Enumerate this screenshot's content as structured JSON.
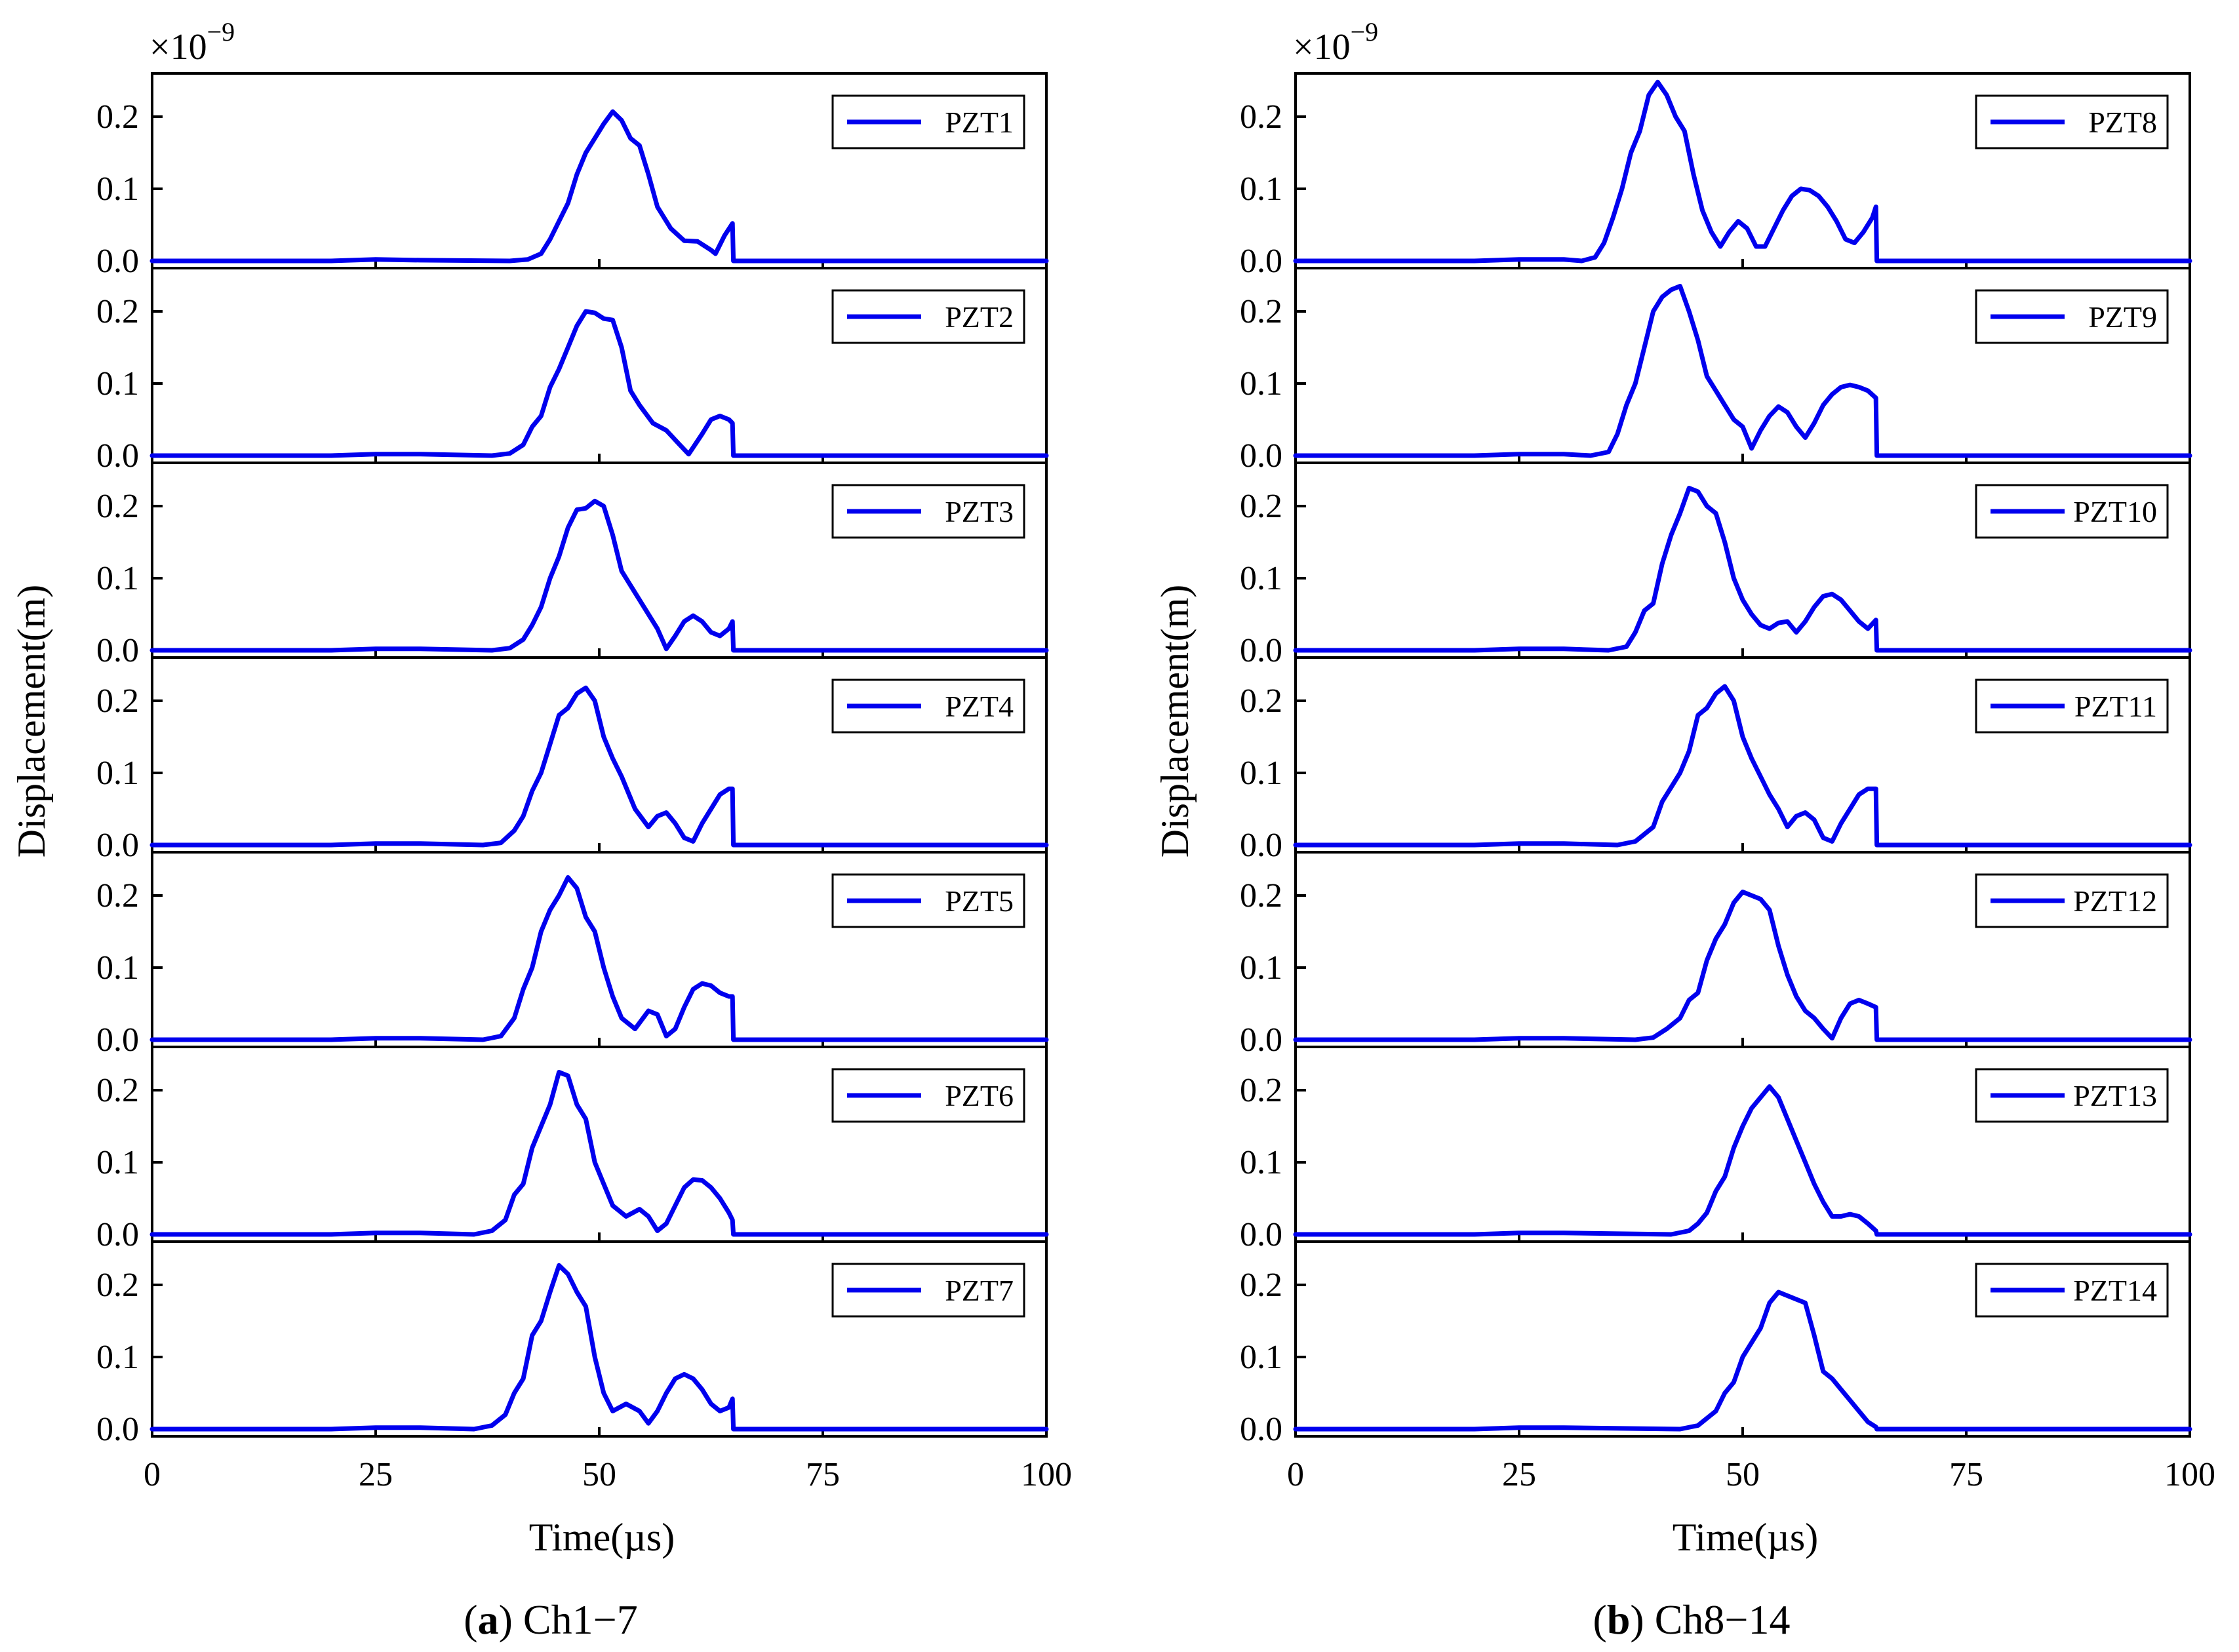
{
  "figure": {
    "line_color": "#0000ee"
  },
  "chart_data": [
    {
      "type": "line",
      "panel_id": "a",
      "caption_letter": "a",
      "caption_text": "Ch1−7",
      "xlabel": "Time(µs)",
      "ylabel": "Displacement(m)",
      "multiplier": "×10",
      "multiplier_exp": "−9",
      "xlim": [
        0,
        100
      ],
      "ylim": [
        -0.01,
        0.26
      ],
      "xticks": [
        0,
        25,
        50,
        75,
        100
      ],
      "xtick_labels": [
        "0",
        "25",
        "50",
        "75",
        "100"
      ],
      "yticks": [
        0.0,
        0.1,
        0.2
      ],
      "ytick_labels": [
        "0.0",
        "0.1",
        "0.2"
      ],
      "grid": false,
      "legend_position": "top-right",
      "series": [
        {
          "name": "PZT1",
          "x": [
            0,
            20,
            25,
            30,
            40,
            42,
            43.5,
            44.5,
            45.5,
            46.5,
            47.5,
            48.5,
            49.5,
            50.5,
            51.5,
            52.5,
            53.5,
            54.5,
            55.5,
            56.5,
            58,
            59.5,
            61,
            62.5,
            63,
            64,
            64.9,
            65,
            70,
            100
          ],
          "values": [
            0,
            0,
            0.002,
            0.001,
            0,
            0.002,
            0.01,
            0.03,
            0.055,
            0.08,
            0.12,
            0.15,
            0.17,
            0.19,
            0.207,
            0.195,
            0.17,
            0.16,
            0.12,
            0.075,
            0.045,
            0.028,
            0.027,
            0.015,
            0.01,
            0.035,
            0.052,
            0,
            0,
            0
          ]
        },
        {
          "name": "PZT2",
          "x": [
            0,
            20,
            25,
            30,
            38,
            40,
            41.5,
            42.5,
            43.5,
            44.5,
            45.5,
            46.5,
            47.5,
            48.5,
            49.5,
            50.5,
            51.5,
            52.5,
            53.5,
            54.5,
            56,
            57.5,
            59,
            60,
            61.5,
            62.5,
            63.5,
            64.5,
            64.9,
            65,
            70,
            100
          ],
          "values": [
            0,
            0,
            0.002,
            0.002,
            0,
            0.003,
            0.015,
            0.04,
            0.055,
            0.095,
            0.12,
            0.15,
            0.18,
            0.2,
            0.198,
            0.19,
            0.188,
            0.15,
            0.09,
            0.07,
            0.045,
            0.035,
            0.015,
            0.002,
            0.03,
            0.05,
            0.055,
            0.05,
            0.045,
            0,
            0,
            0
          ]
        },
        {
          "name": "PZT3",
          "x": [
            0,
            20,
            25,
            30,
            38,
            40,
            41.5,
            42.5,
            43.5,
            44.5,
            45.5,
            46.5,
            47.5,
            48.5,
            49.5,
            50.5,
            51.5,
            52.5,
            53.5,
            55,
            56.5,
            57.5,
            58.5,
            59.5,
            60.5,
            61.5,
            62.5,
            63.5,
            64.5,
            64.9,
            65,
            70,
            100
          ],
          "values": [
            0,
            0,
            0.002,
            0.002,
            0,
            0.003,
            0.015,
            0.035,
            0.06,
            0.1,
            0.13,
            0.17,
            0.195,
            0.197,
            0.207,
            0.2,
            0.16,
            0.11,
            0.09,
            0.06,
            0.03,
            0.002,
            0.02,
            0.04,
            0.048,
            0.04,
            0.025,
            0.02,
            0.03,
            0.04,
            0,
            0,
            0
          ]
        },
        {
          "name": "PZT4",
          "x": [
            0,
            20,
            25,
            30,
            37,
            39,
            40.5,
            41.5,
            42.5,
            43.5,
            44.5,
            45.5,
            46.5,
            47.5,
            48.5,
            49.5,
            50.5,
            51.5,
            52.5,
            54,
            55.5,
            56.5,
            57.5,
            58.5,
            59.5,
            60.5,
            61.5,
            62.5,
            63.5,
            64.5,
            64.9,
            65,
            70,
            100
          ],
          "values": [
            0,
            0,
            0.002,
            0.002,
            0,
            0.003,
            0.02,
            0.04,
            0.075,
            0.1,
            0.14,
            0.18,
            0.19,
            0.21,
            0.218,
            0.2,
            0.15,
            0.12,
            0.095,
            0.05,
            0.025,
            0.04,
            0.045,
            0.03,
            0.01,
            0.005,
            0.03,
            0.05,
            0.07,
            0.078,
            0.078,
            0,
            0,
            0
          ]
        },
        {
          "name": "PZT5",
          "x": [
            0,
            20,
            25,
            30,
            37,
            39,
            40.5,
            41.5,
            42.5,
            43.5,
            44.5,
            45.5,
            46.5,
            47.5,
            48.5,
            49.5,
            50.5,
            51.5,
            52.5,
            54,
            55.5,
            56.5,
            57.5,
            58.5,
            59.5,
            60.5,
            61.5,
            62.5,
            63.5,
            64.5,
            64.9,
            65,
            70,
            100
          ],
          "values": [
            0,
            0,
            0.002,
            0.002,
            0,
            0.005,
            0.03,
            0.07,
            0.1,
            0.15,
            0.18,
            0.2,
            0.225,
            0.21,
            0.17,
            0.15,
            0.1,
            0.06,
            0.03,
            0.015,
            0.04,
            0.035,
            0.005,
            0.015,
            0.045,
            0.07,
            0.078,
            0.075,
            0.065,
            0.06,
            0.06,
            0,
            0,
            0
          ]
        },
        {
          "name": "PZT6",
          "x": [
            0,
            20,
            25,
            30,
            36,
            38,
            39.5,
            40.5,
            41.5,
            42.5,
            43.5,
            44.5,
            45.5,
            46.5,
            47.5,
            48.5,
            49.5,
            50.5,
            51.5,
            53,
            54.5,
            55.5,
            56.5,
            57.5,
            58.5,
            59.5,
            60.5,
            61.5,
            62.5,
            63.5,
            64.5,
            64.9,
            65,
            70,
            100
          ],
          "values": [
            0,
            0,
            0.002,
            0.002,
            0,
            0.005,
            0.02,
            0.055,
            0.07,
            0.12,
            0.15,
            0.18,
            0.225,
            0.22,
            0.18,
            0.16,
            0.1,
            0.07,
            0.04,
            0.025,
            0.035,
            0.025,
            0.005,
            0.015,
            0.04,
            0.065,
            0.076,
            0.075,
            0.065,
            0.05,
            0.03,
            0.02,
            0,
            0,
            0
          ]
        },
        {
          "name": "PZT7",
          "x": [
            0,
            20,
            25,
            30,
            36,
            38,
            39.5,
            40.5,
            41.5,
            42.5,
            43.5,
            44.5,
            45.5,
            46.5,
            47.5,
            48.5,
            49.5,
            50.5,
            51.5,
            53,
            54.5,
            55.5,
            56.5,
            57.5,
            58.5,
            59.5,
            60.5,
            61.5,
            62.5,
            63.5,
            64.5,
            64.9,
            65,
            70,
            100
          ],
          "values": [
            0,
            0,
            0.002,
            0.002,
            0,
            0.005,
            0.02,
            0.05,
            0.07,
            0.13,
            0.15,
            0.19,
            0.227,
            0.215,
            0.19,
            0.17,
            0.1,
            0.05,
            0.025,
            0.035,
            0.025,
            0.008,
            0.025,
            0.05,
            0.07,
            0.076,
            0.07,
            0.055,
            0.035,
            0.025,
            0.03,
            0.042,
            0,
            0,
            0
          ]
        }
      ]
    },
    {
      "type": "line",
      "panel_id": "b",
      "caption_letter": "b",
      "caption_text": "Ch8−14",
      "xlabel": "Time(µs)",
      "ylabel": "Displacement(m)",
      "multiplier": "×10",
      "multiplier_exp": "−9",
      "xlim": [
        0,
        100
      ],
      "ylim": [
        -0.01,
        0.26
      ],
      "xticks": [
        0,
        25,
        50,
        75,
        100
      ],
      "xtick_labels": [
        "0",
        "25",
        "50",
        "75",
        "100"
      ],
      "yticks": [
        0.0,
        0.1,
        0.2
      ],
      "ytick_labels": [
        "0.0",
        "0.1",
        "0.2"
      ],
      "grid": false,
      "legend_position": "top-right",
      "series": [
        {
          "name": "PZT8",
          "x": [
            0,
            20,
            25,
            30,
            32,
            33.5,
            34.5,
            35.5,
            36.5,
            37.5,
            38.5,
            39.5,
            40.5,
            41.5,
            42.5,
            43.5,
            44.5,
            45.5,
            46.5,
            47.5,
            48.5,
            49.5,
            50.5,
            51.5,
            52.5,
            53.5,
            54.5,
            55.5,
            56.5,
            57.5,
            58.5,
            59.5,
            60.5,
            61.5,
            62.5,
            63.5,
            64.5,
            64.9,
            65,
            70,
            100
          ],
          "values": [
            0,
            0,
            0.002,
            0.002,
            0,
            0.005,
            0.025,
            0.06,
            0.1,
            0.15,
            0.18,
            0.23,
            0.248,
            0.23,
            0.2,
            0.18,
            0.12,
            0.07,
            0.04,
            0.02,
            0.04,
            0.055,
            0.045,
            0.02,
            0.02,
            0.045,
            0.07,
            0.09,
            0.1,
            0.098,
            0.09,
            0.075,
            0.055,
            0.03,
            0.025,
            0.04,
            0.06,
            0.075,
            0,
            0,
            0
          ]
        },
        {
          "name": "PZT9",
          "x": [
            0,
            20,
            25,
            30,
            33,
            35,
            36,
            37,
            38,
            39,
            40,
            41,
            42,
            43,
            44,
            45,
            46,
            47,
            48,
            49,
            50,
            51,
            52,
            53,
            54,
            55,
            56,
            57,
            58,
            59,
            60,
            61,
            62,
            63,
            64,
            64.9,
            65,
            70,
            100
          ],
          "values": [
            0,
            0,
            0.002,
            0.002,
            0,
            0.005,
            0.03,
            0.07,
            0.1,
            0.15,
            0.2,
            0.22,
            0.23,
            0.235,
            0.2,
            0.16,
            0.11,
            0.09,
            0.07,
            0.05,
            0.04,
            0.01,
            0.035,
            0.055,
            0.068,
            0.06,
            0.04,
            0.025,
            0.045,
            0.07,
            0.085,
            0.095,
            0.098,
            0.095,
            0.09,
            0.08,
            0,
            0,
            0
          ]
        },
        {
          "name": "PZT10",
          "x": [
            0,
            20,
            25,
            30,
            35,
            37,
            38,
            39,
            40,
            41,
            42,
            43,
            44,
            45,
            46,
            47,
            48,
            49,
            50,
            51,
            52,
            53,
            54,
            55,
            56,
            57,
            58,
            59,
            60,
            61,
            62,
            63,
            64,
            64.9,
            65,
            70,
            100
          ],
          "values": [
            0,
            0,
            0.002,
            0.002,
            0,
            0.005,
            0.025,
            0.055,
            0.065,
            0.12,
            0.16,
            0.19,
            0.225,
            0.22,
            0.2,
            0.19,
            0.15,
            0.1,
            0.07,
            0.05,
            0.035,
            0.03,
            0.038,
            0.04,
            0.025,
            0.04,
            0.06,
            0.075,
            0.078,
            0.07,
            0.055,
            0.04,
            0.03,
            0.042,
            0,
            0,
            0
          ]
        },
        {
          "name": "PZT11",
          "x": [
            0,
            20,
            25,
            30,
            36,
            38,
            39,
            40,
            41,
            42,
            43,
            44,
            45,
            46,
            47,
            48,
            49,
            50,
            51,
            52,
            53,
            54,
            55,
            56,
            57,
            58,
            59,
            60,
            61,
            62,
            63,
            64,
            64.9,
            65,
            70,
            100
          ],
          "values": [
            0,
            0,
            0.002,
            0.002,
            0,
            0.005,
            0.015,
            0.025,
            0.06,
            0.08,
            0.1,
            0.13,
            0.18,
            0.19,
            0.21,
            0.22,
            0.2,
            0.15,
            0.12,
            0.095,
            0.07,
            0.05,
            0.025,
            0.04,
            0.045,
            0.035,
            0.01,
            0.005,
            0.03,
            0.05,
            0.07,
            0.078,
            0.078,
            0,
            0,
            0
          ]
        },
        {
          "name": "PZT12",
          "x": [
            0,
            20,
            25,
            30,
            38,
            40,
            41.5,
            43,
            44,
            45,
            46,
            47,
            48,
            49,
            50,
            51,
            52,
            53,
            54,
            55,
            56,
            57,
            58,
            59,
            60,
            61,
            62,
            63,
            64,
            64.9,
            65,
            70,
            100
          ],
          "values": [
            0,
            0,
            0.002,
            0.002,
            0,
            0.003,
            0.015,
            0.03,
            0.055,
            0.065,
            0.11,
            0.14,
            0.16,
            0.19,
            0.205,
            0.2,
            0.195,
            0.18,
            0.13,
            0.09,
            0.06,
            0.04,
            0.03,
            0.015,
            0.002,
            0.03,
            0.05,
            0.055,
            0.05,
            0.045,
            0,
            0,
            0
          ]
        },
        {
          "name": "PZT13",
          "x": [
            0,
            20,
            25,
            30,
            42,
            44,
            45,
            46,
            47,
            48,
            49,
            50,
            51,
            52,
            53,
            54,
            55,
            56,
            57,
            58,
            59,
            60,
            61,
            62,
            63,
            64,
            64.9,
            65,
            70,
            100
          ],
          "values": [
            0,
            0,
            0.002,
            0.002,
            0,
            0.005,
            0.015,
            0.03,
            0.06,
            0.08,
            0.12,
            0.15,
            0.175,
            0.19,
            0.205,
            0.19,
            0.16,
            0.13,
            0.1,
            0.07,
            0.045,
            0.025,
            0.025,
            0.028,
            0.025,
            0.015,
            0.005,
            0,
            0,
            0
          ]
        },
        {
          "name": "PZT14",
          "x": [
            0,
            20,
            25,
            30,
            43,
            45,
            46,
            47,
            48,
            49,
            50,
            51,
            52,
            53,
            54,
            55,
            56,
            57,
            58,
            59,
            60,
            61,
            62,
            63,
            64,
            64.9,
            65,
            70,
            100
          ],
          "values": [
            0,
            0,
            0.002,
            0.002,
            0,
            0.005,
            0.015,
            0.025,
            0.05,
            0.065,
            0.1,
            0.12,
            0.14,
            0.175,
            0.19,
            0.185,
            0.18,
            0.175,
            0.13,
            0.08,
            0.07,
            0.055,
            0.04,
            0.025,
            0.01,
            0.003,
            0,
            0,
            0
          ]
        }
      ]
    }
  ]
}
